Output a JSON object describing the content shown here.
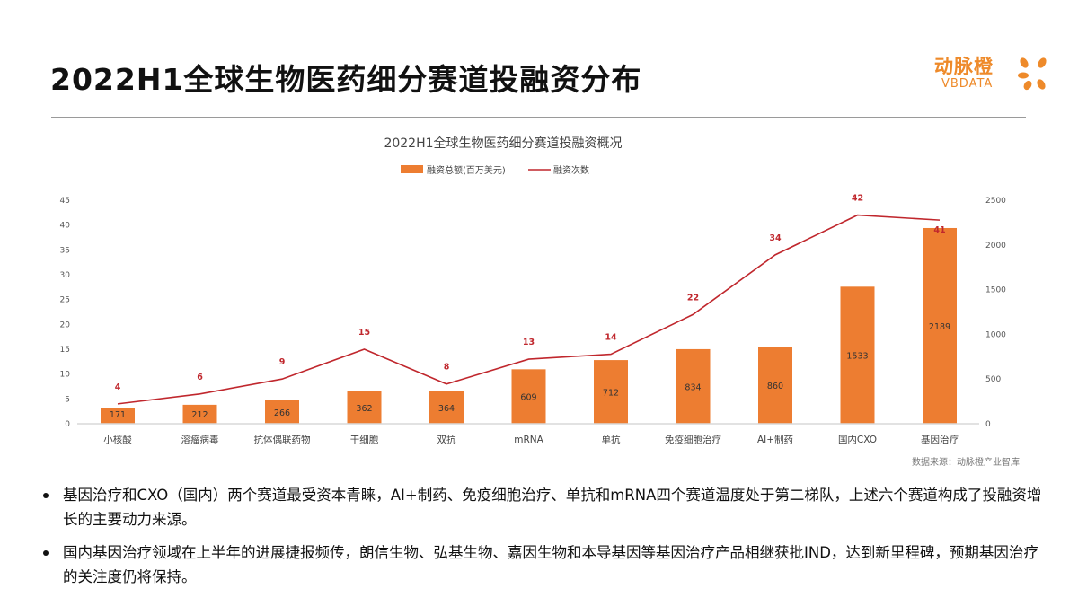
{
  "page": {
    "title": "2022H1全球生物医药细分赛道投融资分布",
    "logo": {
      "cn": "动脉橙",
      "en": "VBDATA"
    },
    "bullets": [
      "基因治疗和CXO（国内）两个赛道最受资本青睐，AI+制药、免疫细胞治疗、单抗和mRNA四个赛道温度处于第二梯队，上述六个赛道构成了投融资增长的主要动力来源。",
      "国内基因治疗领域在上半年的进展捷报频传，朗信生物、弘基生物、嘉因生物和本导基因等基因治疗产品相继获批IND，达到新里程碑，预期基因治疗的关注度仍将保持。"
    ]
  },
  "chart_data": {
    "type": "bar",
    "title": "2022H1全球生物医药细分赛道投融资概况",
    "source": "数据来源：动脉橙产业智库",
    "categories": [
      "小核酸",
      "溶瘤病毒",
      "抗体偶联药物",
      "干细胞",
      "双抗",
      "mRNA",
      "单抗",
      "免疫细胞治疗",
      "AI+制药",
      "国内CXO",
      "基因治疗"
    ],
    "series": [
      {
        "name": "融资总额(百万美元)",
        "type": "bar",
        "axis": "right",
        "color": "#ed7d31",
        "values": [
          171,
          212,
          266,
          362,
          364,
          609,
          712,
          834,
          860,
          1533,
          2189
        ]
      },
      {
        "name": "融资次数",
        "type": "line",
        "axis": "left",
        "color": "#c0272d",
        "values": [
          4,
          6,
          9,
          15,
          8,
          13,
          14,
          22,
          34,
          42,
          41
        ]
      }
    ],
    "left_axis": {
      "ticks": [
        "0",
        "5",
        "10",
        "15",
        "20",
        "25",
        "30",
        "35",
        "40",
        "45"
      ],
      "range": [
        0,
        45
      ]
    },
    "right_axis": {
      "ticks": [
        "0",
        "500",
        "1000",
        "1500",
        "2000",
        "2500"
      ],
      "range": [
        0,
        2500
      ]
    },
    "legend_position": "top-center"
  }
}
